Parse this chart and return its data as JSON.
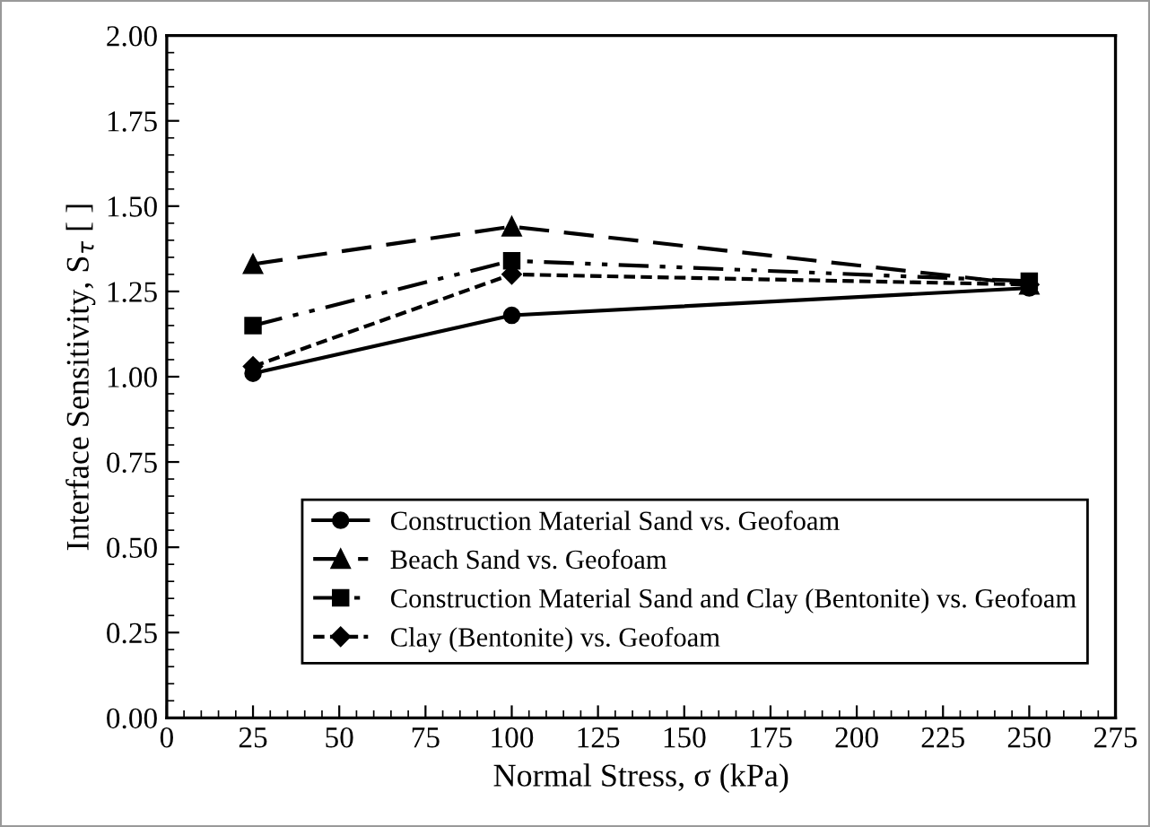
{
  "chart_data": {
    "type": "line",
    "xlabel": "Normal Stress, σ (kPa)",
    "ylabel": "Interface Sensitivity, S$_{τ}$ [ ]",
    "x": [
      25,
      100,
      250
    ],
    "xlim": [
      0,
      275
    ],
    "xticks": [
      0,
      25,
      50,
      75,
      100,
      125,
      150,
      175,
      200,
      225,
      250,
      275
    ],
    "ylim": [
      0,
      2
    ],
    "yticks": [
      {
        "value": 0,
        "label": "0.00"
      },
      {
        "value": 0.25,
        "label": "0.25"
      },
      {
        "value": 0.5,
        "label": "0.50"
      },
      {
        "value": 0.75,
        "label": "0.75"
      },
      {
        "value": 1,
        "label": "1.00"
      },
      {
        "value": 1.25,
        "label": "1.25"
      },
      {
        "value": 1.5,
        "label": "1.50"
      },
      {
        "value": 1.75,
        "label": "1.75"
      },
      {
        "value": 2,
        "label": "2.00"
      }
    ],
    "grid": false,
    "legend": "bottom right",
    "series": [
      {
        "name": "Construction Material Sand vs. Geofoam",
        "color": "#000000",
        "values": [
          1.01,
          1.18,
          1.26
        ],
        "marker": "circle",
        "line_style": "solid"
      },
      {
        "name": "Beach Sand vs. Geofoam",
        "color": "#000000",
        "values": [
          1.33,
          1.44,
          1.27
        ],
        "marker": "triangle",
        "line_style": "dashed"
      },
      {
        "name": "Construction Material Sand and Clay (Bentonite) vs. Geofoam",
        "color": "#000000",
        "values": [
          1.15,
          1.34,
          1.28
        ],
        "marker": "square",
        "line_style": "dashdotdot"
      },
      {
        "name": "Clay (Bentonite) vs. Geofoam",
        "color": "#000000",
        "values": [
          1.03,
          1.3,
          1.27
        ],
        "marker": "diamond",
        "line_style": "dotted"
      }
    ]
  }
}
